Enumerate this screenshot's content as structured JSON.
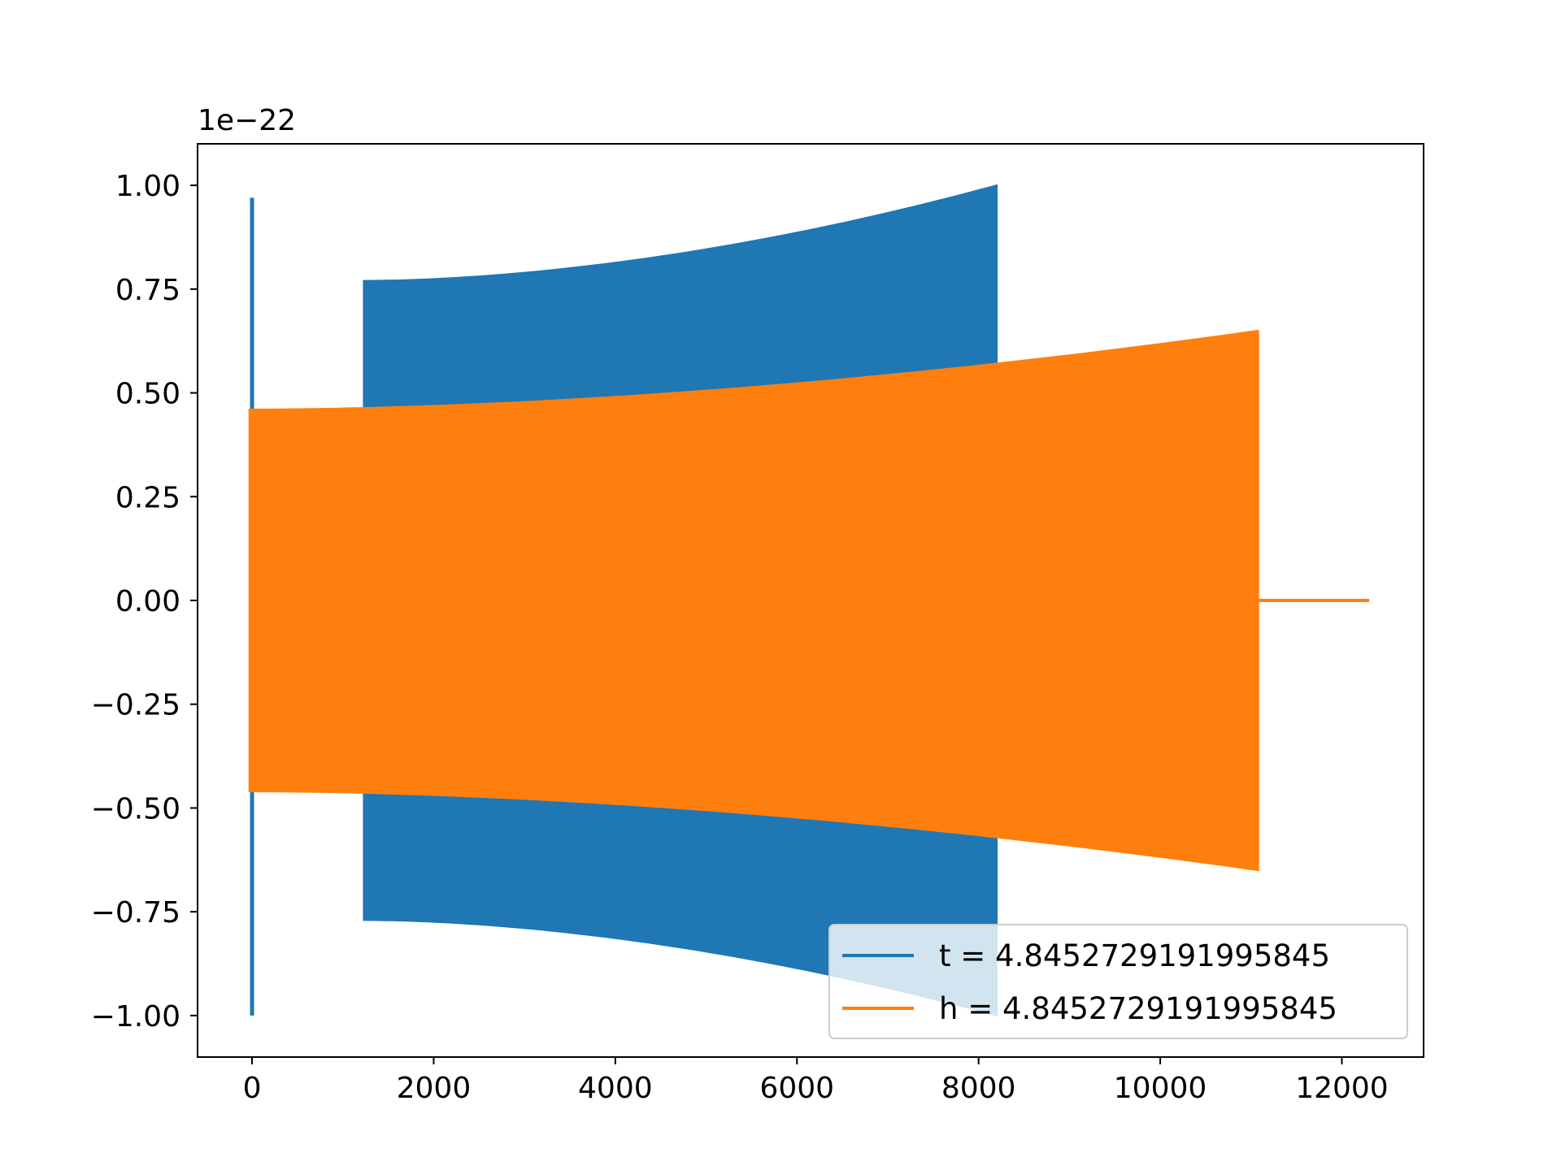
{
  "chart_data": {
    "type": "line",
    "title": "",
    "xlabel": "",
    "ylabel": "",
    "xlim": [
      -600,
      12900
    ],
    "ylim": [
      -1.1,
      1.1
    ],
    "y_offset_label": "1e−22",
    "x_ticks": [
      0,
      2000,
      4000,
      6000,
      8000,
      10000,
      12000
    ],
    "x_tick_labels": [
      "0",
      "2000",
      "4000",
      "6000",
      "8000",
      "10000",
      "12000"
    ],
    "y_ticks": [
      1.0,
      0.75,
      0.5,
      0.25,
      0.0,
      -0.25,
      -0.5,
      -0.75,
      -1.0
    ],
    "y_tick_labels": [
      "1.00",
      "0.75",
      "0.50",
      "0.25",
      "0.00",
      "−0.25",
      "−0.50",
      "−0.75",
      "−1.00"
    ],
    "grid": false,
    "legend_position": "lower-right",
    "series": [
      {
        "name": "t = 4.8452729191995845",
        "color": "#1f77b4",
        "spike": {
          "x": 0,
          "ymax": 0.97,
          "ymin": -1.0
        },
        "envelope": {
          "x_start": 1230,
          "x_end": 8200,
          "amp_start": 0.77,
          "amp_end": 1.0
        }
      },
      {
        "name": "h = 4.8452729191995845",
        "color": "#ff7f0e",
        "envelope": {
          "x_start": -30,
          "x_end": 11080,
          "amp_start": 0.46,
          "amp_end": 0.65
        },
        "tail": {
          "x_start": 11080,
          "x_end": 12300,
          "y": 0.0
        }
      }
    ]
  }
}
